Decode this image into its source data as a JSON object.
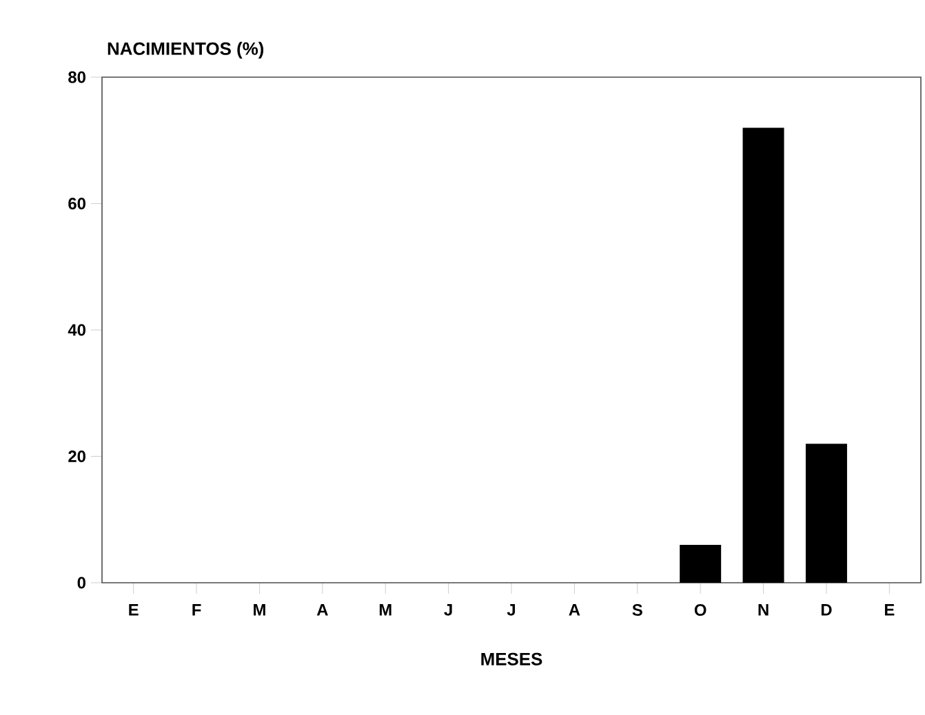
{
  "chart_data": {
    "type": "bar",
    "ylabel": "NACIMIENTOS (%)",
    "xlabel": "MESES",
    "categories": [
      "E",
      "F",
      "M",
      "A",
      "M",
      "J",
      "J",
      "A",
      "S",
      "O",
      "N",
      "D",
      "E"
    ],
    "values": [
      0,
      0,
      0,
      0,
      0,
      0,
      0,
      0,
      0,
      6,
      72,
      22,
      0
    ],
    "color": "#000000",
    "ylim": [
      0,
      80
    ],
    "yticks": [
      0,
      20,
      40,
      60,
      80
    ],
    "grid": false
  }
}
